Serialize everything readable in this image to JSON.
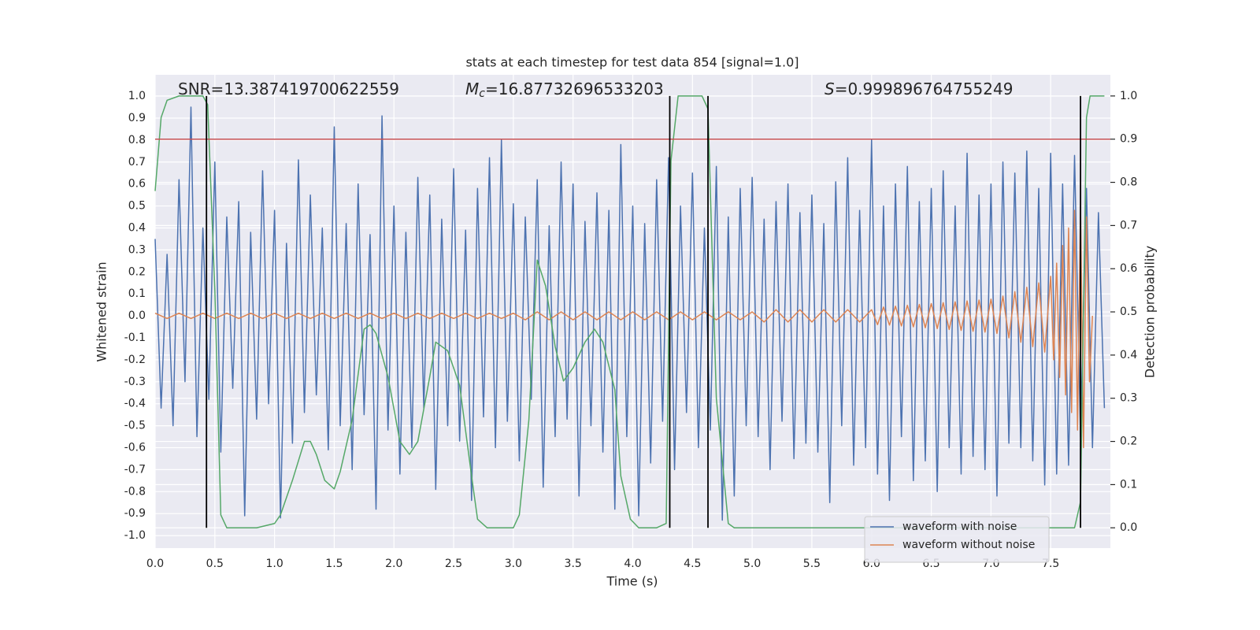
{
  "chart_data": {
    "type": "line",
    "title": "stats at each timestep for test data 854 [signal=1.0]",
    "xlabel": "Time (s)",
    "ylabel": "Whitened strain",
    "y2label": "Detection probability",
    "annotations": [
      {
        "text": "SNR=13.387419700622559"
      },
      {
        "italic": "M",
        "sub": "c",
        "text": "=16.87732696533203"
      },
      {
        "italic": "S",
        "text": "=0.999896764755249"
      }
    ],
    "xlim": [
      0,
      8.0
    ],
    "ylim": [
      -1.057,
      1.097
    ],
    "y2lim": [
      -0.047,
      1.049
    ],
    "xticks": [
      {
        "value": 0,
        "label": "0.0"
      },
      0.5,
      {
        "value": 1,
        "label": "1.0"
      },
      1.5,
      {
        "value": 2,
        "label": "2.0"
      },
      2.5,
      {
        "value": 3,
        "label": "3.0"
      },
      3.5,
      {
        "value": 4,
        "label": "4.0"
      },
      4.5,
      {
        "value": 5,
        "label": "5.0"
      },
      5.5,
      {
        "value": 6,
        "label": "6.0"
      },
      6.5,
      {
        "value": 7,
        "label": "7.0"
      },
      7.5
    ],
    "yticks": [
      {
        "value": -1,
        "label": "-1.0"
      },
      -0.9,
      -0.8,
      -0.7,
      -0.6,
      -0.5,
      -0.4,
      -0.3,
      -0.2,
      -0.1,
      {
        "value": 0,
        "label": "0.0"
      },
      0.1,
      0.2,
      0.3,
      0.4,
      0.5,
      0.6,
      0.7,
      0.8,
      0.9,
      {
        "value": 1,
        "label": "1.0"
      }
    ],
    "y2ticks": [
      {
        "value": 0,
        "label": "0.0"
      },
      0.1,
      0.2,
      0.3,
      0.4,
      0.5,
      0.6,
      0.7,
      0.8,
      0.9,
      {
        "value": 1,
        "label": "1.0"
      }
    ],
    "grid": true,
    "legend": "lower right",
    "series": [
      {
        "name": "waveform with noise",
        "color": "#4c72b0",
        "x": [
          0,
          0.05,
          0.1,
          0.15,
          0.2,
          0.25,
          0.3,
          0.35,
          0.4,
          0.45,
          0.5,
          0.55,
          0.6,
          0.65,
          0.7,
          0.75,
          0.8,
          0.85,
          0.9,
          0.95,
          1.0,
          1.05,
          1.1,
          1.15,
          1.2,
          1.25,
          1.3,
          1.35,
          1.4,
          1.45,
          1.5,
          1.55,
          1.6,
          1.65,
          1.7,
          1.75,
          1.8,
          1.85,
          1.9,
          1.95,
          2.0,
          2.05,
          2.1,
          2.15,
          2.2,
          2.25,
          2.3,
          2.35,
          2.4,
          2.45,
          2.5,
          2.55,
          2.6,
          2.65,
          2.7,
          2.75,
          2.8,
          2.85,
          2.9,
          2.95,
          3.0,
          3.05,
          3.1,
          3.15,
          3.2,
          3.25,
          3.3,
          3.35,
          3.4,
          3.45,
          3.5,
          3.55,
          3.6,
          3.65,
          3.7,
          3.75,
          3.8,
          3.85,
          3.9,
          3.95,
          4.0,
          4.05,
          4.1,
          4.15,
          4.2,
          4.25,
          4.3,
          4.35,
          4.4,
          4.45,
          4.5,
          4.55,
          4.6,
          4.65,
          4.7,
          4.75,
          4.8,
          4.85,
          4.9,
          4.95,
          5.0,
          5.05,
          5.1,
          5.15,
          5.2,
          5.25,
          5.3,
          5.35,
          5.4,
          5.45,
          5.5,
          5.55,
          5.6,
          5.65,
          5.7,
          5.75,
          5.8,
          5.85,
          5.9,
          5.95,
          6.0,
          6.05,
          6.1,
          6.15,
          6.2,
          6.25,
          6.3,
          6.35,
          6.4,
          6.45,
          6.5,
          6.55,
          6.6,
          6.65,
          6.7,
          6.75,
          6.8,
          6.85,
          6.9,
          6.95,
          7.0,
          7.05,
          7.1,
          7.15,
          7.2,
          7.25,
          7.3,
          7.35,
          7.4,
          7.45,
          7.5,
          7.55,
          7.6,
          7.65,
          7.7,
          7.75,
          7.8,
          7.85,
          7.9,
          7.95
        ],
        "values": [
          0.35,
          -0.42,
          0.28,
          -0.5,
          0.62,
          -0.3,
          0.95,
          -0.55,
          0.4,
          -0.38,
          0.7,
          -0.62,
          0.45,
          -0.33,
          0.52,
          -0.91,
          0.38,
          -0.47,
          0.66,
          -0.4,
          0.48,
          -0.92,
          0.33,
          -0.58,
          0.71,
          -0.44,
          0.55,
          -0.36,
          0.4,
          -0.61,
          0.86,
          -0.5,
          0.42,
          -0.7,
          0.6,
          -0.45,
          0.37,
          -0.88,
          0.91,
          -0.52,
          0.5,
          -0.72,
          0.38,
          -0.6,
          0.63,
          -0.42,
          0.55,
          -0.79,
          0.44,
          -0.5,
          0.67,
          -0.57,
          0.39,
          -0.84,
          0.58,
          -0.46,
          0.72,
          -0.6,
          0.8,
          -0.48,
          0.51,
          -0.66,
          0.45,
          -0.38,
          0.62,
          -0.78,
          0.41,
          -0.55,
          0.7,
          -0.47,
          0.6,
          -0.82,
          0.43,
          -0.5,
          0.56,
          -0.62,
          0.48,
          -0.88,
          0.78,
          -0.55,
          0.5,
          -0.91,
          0.42,
          -0.67,
          0.62,
          -0.48,
          0.72,
          -0.7,
          0.5,
          -0.44,
          0.65,
          -0.6,
          0.4,
          -0.52,
          0.68,
          -0.93,
          0.45,
          -0.82,
          0.58,
          -0.5,
          0.63,
          -0.55,
          0.44,
          -0.7,
          0.52,
          -0.48,
          0.6,
          -0.65,
          0.47,
          -0.58,
          0.55,
          -0.62,
          0.42,
          -0.85,
          0.61,
          -0.5,
          0.72,
          -0.68,
          0.48,
          -0.6,
          0.8,
          -0.72,
          0.5,
          -0.84,
          0.6,
          -0.55,
          0.68,
          -0.75,
          0.52,
          -0.66,
          0.58,
          -0.8,
          0.66,
          -0.6,
          0.5,
          -0.72,
          0.74,
          -0.64,
          0.55,
          -0.7,
          0.6,
          -0.82,
          0.7,
          -0.58,
          0.65,
          -0.6,
          0.75,
          -0.66,
          0.58,
          -0.77,
          0.74,
          -0.72,
          0.6,
          -0.68,
          0.73,
          -0.55,
          0.58,
          -0.6,
          0.47,
          -0.42
        ]
      },
      {
        "name": "waveform without noise",
        "color": "#dd8452",
        "x": [
          0,
          0.1,
          0.2,
          0.3,
          0.4,
          0.5,
          0.6,
          0.7,
          0.8,
          0.9,
          1.0,
          1.1,
          1.2,
          1.3,
          1.4,
          1.5,
          1.6,
          1.7,
          1.8,
          1.9,
          2.0,
          2.1,
          2.2,
          2.3,
          2.4,
          2.5,
          2.6,
          2.7,
          2.8,
          2.9,
          3.0,
          3.1,
          3.2,
          3.3,
          3.4,
          3.5,
          3.6,
          3.7,
          3.8,
          3.9,
          4.0,
          4.1,
          4.2,
          4.3,
          4.4,
          4.5,
          4.6,
          4.7,
          4.8,
          4.9,
          5.0,
          5.1,
          5.2,
          5.3,
          5.4,
          5.5,
          5.6,
          5.7,
          5.8,
          5.9,
          6.0,
          6.05,
          6.1,
          6.15,
          6.2,
          6.25,
          6.3,
          6.35,
          6.4,
          6.45,
          6.5,
          6.55,
          6.6,
          6.65,
          6.7,
          6.75,
          6.8,
          6.85,
          6.9,
          6.95,
          7.0,
          7.05,
          7.1,
          7.15,
          7.2,
          7.25,
          7.3,
          7.35,
          7.4,
          7.45,
          7.5,
          7.525,
          7.55,
          7.575,
          7.6,
          7.625,
          7.65,
          7.675,
          7.7,
          7.725,
          7.75,
          7.775,
          7.8,
          7.825,
          7.85
        ],
        "values": [
          0.012,
          -0.012,
          0.012,
          -0.012,
          0.012,
          -0.012,
          0.012,
          -0.012,
          0.012,
          -0.012,
          0.012,
          -0.012,
          0.012,
          -0.012,
          0.012,
          -0.012,
          0.012,
          -0.012,
          0.012,
          -0.012,
          0.012,
          -0.012,
          0.012,
          -0.012,
          0.012,
          -0.012,
          0.012,
          -0.012,
          0.012,
          -0.012,
          0.012,
          -0.018,
          0.018,
          -0.018,
          0.018,
          -0.018,
          0.018,
          -0.018,
          0.018,
          -0.018,
          0.018,
          -0.018,
          0.018,
          -0.018,
          0.018,
          -0.018,
          0.018,
          -0.018,
          0.018,
          -0.018,
          0.018,
          -0.028,
          0.028,
          -0.028,
          0.028,
          -0.028,
          0.028,
          -0.028,
          0.028,
          -0.028,
          0.028,
          -0.04,
          0.04,
          -0.042,
          0.044,
          -0.046,
          0.048,
          -0.05,
          0.052,
          -0.054,
          0.056,
          -0.058,
          0.06,
          -0.062,
          0.064,
          -0.066,
          0.068,
          -0.07,
          0.072,
          -0.074,
          0.076,
          -0.08,
          0.09,
          -0.1,
          0.11,
          -0.12,
          0.13,
          -0.14,
          0.15,
          -0.165,
          0.18,
          -0.2,
          0.24,
          -0.28,
          0.32,
          -0.36,
          0.4,
          -0.44,
          0.48,
          -0.52,
          0.5,
          -0.6,
          0.45,
          -0.3,
          0
        ]
      },
      {
        "color": "#55a868",
        "axis": "y2",
        "x": [
          0,
          0.05,
          0.1,
          0.2,
          0.4,
          0.44,
          0.5,
          0.55,
          0.6,
          0.85,
          1.0,
          1.05,
          1.15,
          1.25,
          1.3,
          1.35,
          1.42,
          1.5,
          1.55,
          1.65,
          1.75,
          1.8,
          1.85,
          1.95,
          2.05,
          2.13,
          2.2,
          2.3,
          2.35,
          2.45,
          2.55,
          2.65,
          2.7,
          2.78,
          3.0,
          3.05,
          3.13,
          3.2,
          3.27,
          3.35,
          3.42,
          3.5,
          3.6,
          3.68,
          3.75,
          3.85,
          3.9,
          3.98,
          4.05,
          4.2,
          4.28,
          4.32,
          4.38,
          4.58,
          4.63,
          4.7,
          4.8,
          4.85,
          7.4,
          7.7,
          7.75,
          7.8,
          7.83,
          7.95
        ],
        "values": [
          0.78,
          0.95,
          0.99,
          1.0,
          1.0,
          0.98,
          0.55,
          0.03,
          0.0,
          0.0,
          0.01,
          0.03,
          0.11,
          0.2,
          0.2,
          0.17,
          0.11,
          0.09,
          0.13,
          0.25,
          0.46,
          0.47,
          0.45,
          0.35,
          0.2,
          0.17,
          0.2,
          0.35,
          0.43,
          0.41,
          0.33,
          0.12,
          0.02,
          0.0,
          0.0,
          0.03,
          0.25,
          0.62,
          0.56,
          0.42,
          0.34,
          0.37,
          0.43,
          0.46,
          0.43,
          0.32,
          0.12,
          0.02,
          0.0,
          0.0,
          0.01,
          0.85,
          1.0,
          1.0,
          0.97,
          0.3,
          0.01,
          0.0,
          0.0,
          0.0,
          0.06,
          0.95,
          1.0,
          1.0
        ]
      }
    ],
    "hlines": [
      {
        "y": 0.9,
        "axis": "y2",
        "color": "#c44e52"
      }
    ],
    "vlines": {
      "x": [
        0.43,
        4.31,
        4.63,
        7.75
      ],
      "axis": "y2",
      "color": "#000000"
    }
  }
}
